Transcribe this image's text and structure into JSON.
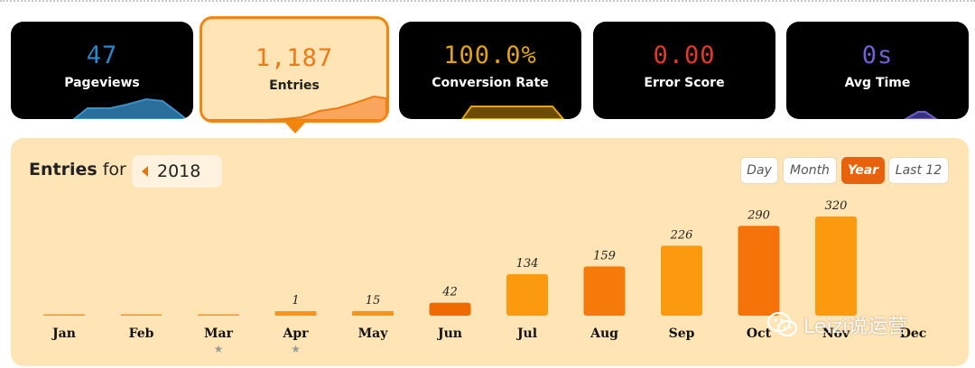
{
  "metrics": [
    {
      "value": "47",
      "label": "Pageviews",
      "color": "#2f86c6",
      "spark": "blue"
    },
    {
      "value": "1,187",
      "label": "Entries",
      "color": "#f07a12",
      "spark": "orange"
    },
    {
      "value": "100.0%",
      "label": "Conversion Rate",
      "color": "#e2a512",
      "spark": "gold"
    },
    {
      "value": "0.00",
      "label": "Error Score",
      "color": "#e23a2a",
      "spark": "none"
    },
    {
      "value": "0s",
      "label": "Avg Time",
      "color": "#6e61d4",
      "spark": "purple"
    }
  ],
  "panel": {
    "title_strong": "Entries",
    "title_rest": " for",
    "year": "2018",
    "ranges": [
      {
        "label": "Day",
        "active": false
      },
      {
        "label": "Month",
        "active": false
      },
      {
        "label": "Year",
        "active": true
      },
      {
        "label": "Last 12",
        "active": false
      }
    ]
  },
  "watermark": "Leizi说运营",
  "chart_data": {
    "type": "bar",
    "categories": [
      "Jan",
      "Feb",
      "Mar",
      "Apr",
      "May",
      "Jun",
      "Jul",
      "Aug",
      "Sep",
      "Oct",
      "Nov",
      "Dec"
    ],
    "values": [
      0,
      0,
      0,
      1,
      15,
      42,
      134,
      159,
      226,
      290,
      320,
      null
    ],
    "labels": [
      "",
      "",
      "",
      "1",
      "15",
      "42",
      "134",
      "159",
      "226",
      "290",
      "320",
      ""
    ],
    "starred": [
      "Mar",
      "Apr"
    ],
    "colors": [
      "#f7941d",
      "#f7941d",
      "#f7941d",
      "#f7941d",
      "#f7941d",
      "#f06a00",
      "#fb9a0f",
      "#f57a09",
      "#fb9a0f",
      "#f57309",
      "#fb9a0f",
      "#f7941d"
    ],
    "title": "",
    "xlabel": "",
    "ylabel": "",
    "ylim": [
      0,
      320
    ]
  }
}
